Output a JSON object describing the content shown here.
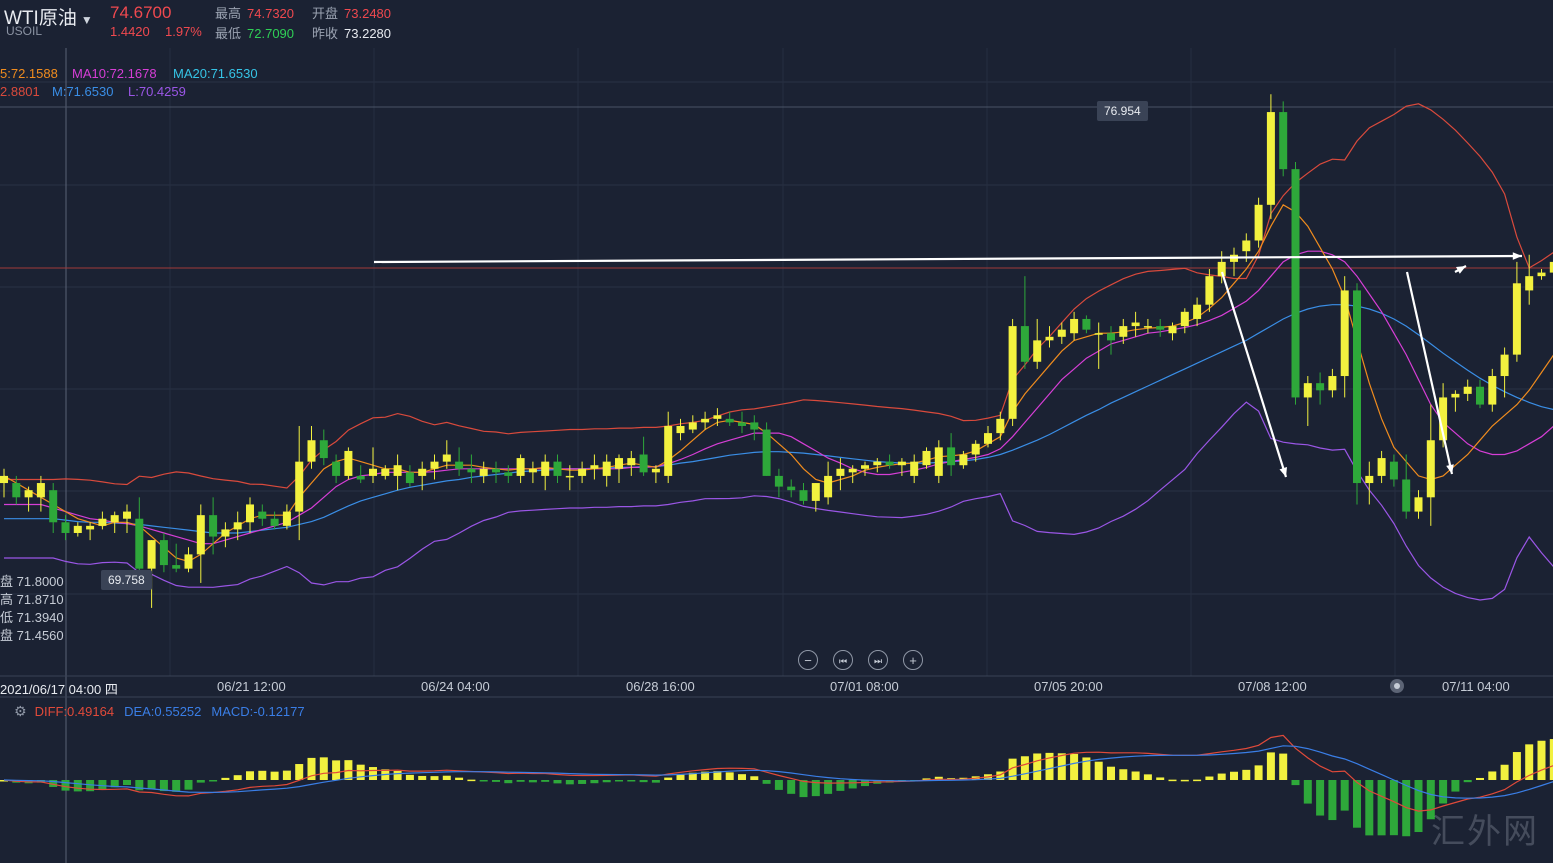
{
  "header": {
    "symbol": "WTI原油",
    "symbol_code": "USOIL",
    "price": "74.6700",
    "change": "1.4420",
    "change_pct": "1.97%",
    "high_label": "最高",
    "high": "74.7320",
    "open_label": "开盘",
    "open": "73.2480",
    "low_label": "最低",
    "low": "72.7090",
    "prev_close_label": "昨收",
    "prev_close": "73.2280"
  },
  "indicators": {
    "ma5": "5:72.1588",
    "ma10": "MA10:72.1678",
    "ma20": "MA20:71.6530",
    "boll_u": "2.8801",
    "boll_m": "M:71.6530",
    "boll_l": "L:70.4259"
  },
  "ohlc_table": [
    {
      "k": "盘",
      "v": "71.8000"
    },
    {
      "k": "高",
      "v": "71.8710"
    },
    {
      "k": "低",
      "v": "71.3940"
    },
    {
      "k": "盘",
      "v": "71.4560"
    }
  ],
  "annotations": {
    "max_label": "76.954",
    "min_label": "69.758"
  },
  "time_axis": {
    "cursor_label": "2021/06/17 04:00 四",
    "ticks": [
      "06/21 12:00",
      "06/24 04:00",
      "06/28 16:00",
      "07/01 08:00",
      "07/05 20:00",
      "07/08 12:00",
      "07/11 04:00"
    ]
  },
  "macd_header": {
    "diff": "DIFF:0.49164",
    "dea": "DEA:0.55252",
    "macd": "MACD:-0.12177"
  },
  "controls": {
    "zoom_out": "−",
    "prev": "⏮",
    "next": "⏭",
    "zoom_in": "+"
  },
  "watermark": "汇外网",
  "colors": {
    "background": "#1b2233",
    "up": "#f2f13f",
    "down": "#2ea83a",
    "ma5": "#f08c1e",
    "ma10": "#d63ed6",
    "ma20": "#3a8ee6",
    "boll_upper": "#d94a3c",
    "boll_lower": "#9a56e6",
    "diff": "#e04a3a",
    "dea": "#3a7ee6"
  },
  "chart_data": {
    "type": "candlestick",
    "y_range": [
      69.3,
      77.5
    ],
    "candles": [
      [
        71.5,
        71.7,
        71.3,
        71.6
      ],
      [
        71.5,
        71.6,
        71.2,
        71.3
      ],
      [
        71.3,
        71.45,
        71.1,
        71.4
      ],
      [
        71.3,
        71.6,
        71.1,
        71.5
      ],
      [
        71.4,
        71.5,
        70.8,
        70.95
      ],
      [
        70.95,
        71.05,
        70.7,
        70.8
      ],
      [
        70.8,
        70.95,
        70.75,
        70.9
      ],
      [
        70.85,
        70.95,
        70.7,
        70.9
      ],
      [
        70.9,
        71.1,
        70.85,
        71.0
      ],
      [
        70.95,
        71.1,
        70.8,
        71.05
      ],
      [
        71.0,
        71.2,
        70.8,
        71.1
      ],
      [
        71.0,
        71.3,
        70.0,
        70.3
      ],
      [
        70.3,
        70.7,
        69.75,
        70.7
      ],
      [
        70.7,
        70.8,
        70.25,
        70.35
      ],
      [
        70.35,
        70.65,
        70.25,
        70.3
      ],
      [
        70.3,
        70.6,
        70.25,
        70.5
      ],
      [
        70.5,
        71.2,
        70.1,
        71.05
      ],
      [
        71.05,
        71.3,
        70.5,
        70.75
      ],
      [
        70.75,
        70.95,
        70.6,
        70.85
      ],
      [
        70.85,
        71.1,
        70.7,
        70.95
      ],
      [
        70.95,
        71.3,
        70.8,
        71.2
      ],
      [
        71.1,
        71.2,
        70.9,
        71.0
      ],
      [
        71.0,
        71.1,
        70.85,
        70.9
      ],
      [
        70.9,
        71.2,
        70.85,
        71.1
      ],
      [
        71.1,
        72.3,
        70.7,
        71.8
      ],
      [
        71.8,
        72.3,
        71.7,
        72.1
      ],
      [
        72.1,
        72.25,
        71.75,
        71.85
      ],
      [
        71.8,
        71.9,
        71.5,
        71.6
      ],
      [
        71.6,
        72.0,
        71.55,
        71.95
      ],
      [
        71.6,
        71.75,
        71.5,
        71.55
      ],
      [
        71.6,
        72.0,
        71.5,
        71.7
      ],
      [
        71.6,
        71.75,
        71.55,
        71.7
      ],
      [
        71.6,
        71.9,
        71.4,
        71.75
      ],
      [
        71.65,
        71.75,
        71.45,
        71.5
      ],
      [
        71.6,
        71.8,
        71.4,
        71.7
      ],
      [
        71.7,
        71.9,
        71.55,
        71.8
      ],
      [
        71.8,
        72.1,
        71.7,
        71.9
      ],
      [
        71.8,
        72.0,
        71.6,
        71.7
      ],
      [
        71.7,
        71.9,
        71.5,
        71.65
      ],
      [
        71.6,
        71.8,
        71.5,
        71.7
      ],
      [
        71.7,
        71.8,
        71.5,
        71.65
      ],
      [
        71.65,
        71.75,
        71.5,
        71.6
      ],
      [
        71.6,
        71.9,
        71.5,
        71.85
      ],
      [
        71.65,
        71.8,
        71.5,
        71.7
      ],
      [
        71.6,
        71.9,
        71.4,
        71.8
      ],
      [
        71.8,
        71.9,
        71.5,
        71.6
      ],
      [
        71.6,
        71.75,
        71.4,
        71.6
      ],
      [
        71.6,
        71.8,
        71.5,
        71.7
      ],
      [
        71.7,
        71.9,
        71.55,
        71.75
      ],
      [
        71.6,
        71.9,
        71.45,
        71.8
      ],
      [
        71.7,
        71.9,
        71.5,
        71.85
      ],
      [
        71.75,
        71.95,
        71.6,
        71.85
      ],
      [
        71.9,
        72.15,
        71.6,
        71.65
      ],
      [
        71.65,
        71.75,
        71.5,
        71.7
      ],
      [
        71.6,
        72.5,
        71.5,
        72.3
      ],
      [
        72.2,
        72.4,
        72.1,
        72.3
      ],
      [
        72.25,
        72.45,
        72.2,
        72.35
      ],
      [
        72.35,
        72.5,
        72.25,
        72.4
      ],
      [
        72.4,
        72.55,
        72.3,
        72.45
      ],
      [
        72.4,
        72.5,
        72.3,
        72.35
      ],
      [
        72.35,
        72.5,
        72.2,
        72.3
      ],
      [
        72.35,
        72.45,
        72.1,
        72.25
      ],
      [
        72.25,
        72.35,
        71.6,
        71.6
      ],
      [
        71.6,
        71.7,
        71.3,
        71.45
      ],
      [
        71.45,
        71.55,
        71.3,
        71.4
      ],
      [
        71.4,
        71.5,
        71.2,
        71.25
      ],
      [
        71.25,
        71.5,
        71.1,
        71.5
      ],
      [
        71.3,
        71.8,
        71.2,
        71.6
      ],
      [
        71.6,
        71.85,
        71.4,
        71.7
      ],
      [
        71.65,
        71.75,
        71.5,
        71.7
      ],
      [
        71.7,
        71.8,
        71.6,
        71.75
      ],
      [
        71.75,
        71.85,
        71.65,
        71.8
      ],
      [
        71.8,
        71.9,
        71.7,
        71.75
      ],
      [
        71.75,
        71.85,
        71.6,
        71.8
      ],
      [
        71.6,
        71.9,
        71.5,
        71.8
      ],
      [
        71.75,
        72.0,
        71.7,
        71.95
      ],
      [
        71.6,
        72.1,
        71.5,
        72.0
      ],
      [
        72.0,
        72.2,
        71.6,
        71.75
      ],
      [
        71.75,
        71.95,
        71.7,
        71.9
      ],
      [
        71.9,
        72.1,
        71.8,
        72.05
      ],
      [
        72.05,
        72.3,
        72.0,
        72.2
      ],
      [
        72.2,
        72.5,
        72.1,
        72.4
      ],
      [
        72.4,
        73.8,
        72.3,
        73.7
      ],
      [
        73.7,
        74.4,
        73.1,
        73.2
      ],
      [
        73.2,
        73.8,
        73.1,
        73.5
      ],
      [
        73.5,
        73.7,
        73.4,
        73.55
      ],
      [
        73.55,
        73.75,
        73.45,
        73.65
      ],
      [
        73.6,
        73.9,
        73.5,
        73.8
      ],
      [
        73.8,
        73.85,
        73.6,
        73.65
      ],
      [
        73.6,
        73.75,
        73.1,
        73.6
      ],
      [
        73.6,
        73.7,
        73.3,
        73.5
      ],
      [
        73.55,
        73.8,
        73.45,
        73.7
      ],
      [
        73.7,
        73.9,
        73.55,
        73.75
      ],
      [
        73.7,
        73.8,
        73.6,
        73.7
      ],
      [
        73.7,
        73.8,
        73.55,
        73.65
      ],
      [
        73.6,
        73.75,
        73.5,
        73.7
      ],
      [
        73.7,
        73.95,
        73.6,
        73.9
      ],
      [
        73.8,
        74.1,
        73.7,
        74.0
      ],
      [
        74.0,
        74.5,
        73.9,
        74.4
      ],
      [
        74.4,
        74.75,
        74.3,
        74.6
      ],
      [
        74.6,
        74.8,
        74.4,
        74.7
      ],
      [
        74.75,
        75.0,
        74.6,
        74.9
      ],
      [
        74.9,
        75.5,
        74.8,
        75.4
      ],
      [
        75.4,
        76.95,
        75.2,
        76.7
      ],
      [
        76.7,
        76.85,
        75.8,
        75.9
      ],
      [
        75.9,
        76.0,
        72.6,
        72.7
      ],
      [
        72.7,
        73.0,
        72.3,
        72.9
      ],
      [
        72.9,
        73.05,
        72.6,
        72.8
      ],
      [
        72.8,
        73.1,
        72.7,
        73.0
      ],
      [
        73.0,
        74.4,
        72.7,
        74.2
      ],
      [
        74.2,
        74.3,
        71.2,
        71.5
      ],
      [
        71.5,
        71.8,
        71.2,
        71.6
      ],
      [
        71.6,
        71.95,
        71.5,
        71.85
      ],
      [
        71.8,
        71.9,
        71.45,
        71.55
      ],
      [
        71.55,
        71.9,
        71.0,
        71.1
      ],
      [
        71.1,
        71.4,
        71.0,
        71.3
      ],
      [
        71.3,
        72.6,
        70.9,
        72.1
      ],
      [
        72.1,
        72.9,
        72.0,
        72.7
      ],
      [
        72.7,
        72.8,
        72.5,
        72.75
      ],
      [
        72.75,
        72.95,
        72.65,
        72.85
      ],
      [
        72.85,
        72.95,
        72.55,
        72.6
      ],
      [
        72.6,
        73.1,
        72.5,
        73.0
      ],
      [
        73.0,
        73.4,
        72.7,
        73.3
      ],
      [
        73.3,
        74.6,
        73.2,
        74.3
      ],
      [
        74.2,
        74.7,
        74.0,
        74.4
      ],
      [
        74.4,
        74.5,
        74.35,
        74.45
      ],
      [
        74.45,
        74.7,
        74.4,
        74.6
      ]
    ],
    "ma5": [
      71.6,
      71.5,
      71.4,
      71.3,
      71.2,
      71.1,
      71.0,
      70.95,
      70.9,
      70.95,
      70.95,
      70.9,
      70.75,
      70.6,
      70.45,
      70.4,
      70.5,
      70.65,
      70.8,
      70.9,
      71.0,
      71.05,
      71.05,
      71.05,
      71.3,
      71.5,
      71.7,
      71.8,
      71.85,
      71.8,
      71.75,
      71.7,
      71.7,
      71.65,
      71.65,
      71.7,
      71.75,
      71.75,
      71.75,
      71.72,
      71.7,
      71.68,
      71.7,
      71.7,
      71.72,
      71.7,
      71.68,
      71.68,
      71.7,
      71.72,
      71.75,
      71.78,
      71.75,
      71.72,
      71.82,
      71.95,
      72.1,
      72.25,
      72.35,
      72.38,
      72.35,
      72.32,
      72.2,
      72.05,
      71.9,
      71.7,
      71.55,
      71.5,
      71.55,
      71.6,
      71.68,
      71.72,
      71.75,
      71.77,
      71.78,
      71.82,
      71.87,
      71.88,
      71.9,
      71.95,
      72.05,
      72.15,
      72.5,
      72.75,
      72.95,
      73.15,
      73.35,
      73.5,
      73.55,
      73.6,
      73.6,
      73.62,
      73.65,
      73.67,
      73.68,
      73.7,
      73.75,
      73.82,
      73.95,
      74.1,
      74.3,
      74.5,
      74.75,
      75.1,
      75.4,
      75.3,
      75.1,
      74.8,
      74.5,
      74.1,
      73.5,
      72.9,
      72.4,
      72.0,
      71.8,
      71.6,
      71.55,
      71.6,
      71.75,
      71.9,
      72.1,
      72.3,
      72.45,
      72.6,
      72.8,
      73.05,
      73.3,
      73.55,
      73.8
    ],
    "ma10": [
      71.2,
      71.2,
      71.2,
      71.2,
      71.15,
      71.1,
      71.05,
      71.0,
      70.98,
      70.95,
      70.93,
      70.9,
      70.85,
      70.8,
      70.75,
      70.7,
      70.65,
      70.65,
      70.7,
      70.75,
      70.8,
      70.85,
      70.9,
      70.95,
      71.05,
      71.15,
      71.3,
      71.45,
      71.55,
      71.6,
      71.62,
      71.65,
      71.65,
      71.65,
      71.65,
      71.66,
      71.68,
      71.7,
      71.7,
      71.7,
      71.7,
      71.7,
      71.7,
      71.7,
      71.7,
      71.7,
      71.7,
      71.7,
      71.7,
      71.7,
      71.7,
      71.72,
      71.72,
      71.73,
      71.77,
      71.83,
      71.9,
      71.98,
      72.05,
      72.1,
      72.15,
      72.2,
      72.2,
      72.2,
      72.15,
      72.05,
      71.95,
      71.85,
      71.78,
      71.7,
      71.65,
      71.62,
      71.62,
      71.65,
      71.68,
      71.72,
      71.77,
      71.8,
      71.83,
      71.86,
      71.9,
      71.98,
      72.15,
      72.35,
      72.55,
      72.75,
      72.95,
      73.1,
      73.25,
      73.35,
      73.45,
      73.5,
      73.55,
      73.6,
      73.62,
      73.65,
      73.68,
      73.72,
      73.78,
      73.85,
      73.95,
      74.05,
      74.2,
      74.4,
      74.6,
      74.7,
      74.75,
      74.75,
      74.7,
      74.6,
      74.4,
      74.15,
      73.9,
      73.6,
      73.3,
      72.95,
      72.6,
      72.35,
      72.2,
      72.05,
      71.95,
      71.9,
      71.9,
      71.95,
      72.05,
      72.15,
      72.3,
      72.45,
      72.6
    ],
    "ma20": [
      71.0,
      71.0,
      71.0,
      71.0,
      71.0,
      70.98,
      70.96,
      70.95,
      70.95,
      70.94,
      70.93,
      70.92,
      70.9,
      70.88,
      70.86,
      70.84,
      70.82,
      70.8,
      70.8,
      70.8,
      70.82,
      70.84,
      70.86,
      70.88,
      70.92,
      70.96,
      71.02,
      71.1,
      71.18,
      71.25,
      71.3,
      71.35,
      71.4,
      71.44,
      71.47,
      71.5,
      71.53,
      71.55,
      71.58,
      71.6,
      71.62,
      71.64,
      71.66,
      71.67,
      71.68,
      71.69,
      71.7,
      71.7,
      71.71,
      71.71,
      71.72,
      71.72,
      71.73,
      71.73,
      71.75,
      71.78,
      71.8,
      71.83,
      71.86,
      71.89,
      71.91,
      71.93,
      71.94,
      71.94,
      71.93,
      71.92,
      71.9,
      71.88,
      71.86,
      71.84,
      71.82,
      71.8,
      71.79,
      71.78,
      71.78,
      71.78,
      71.79,
      71.8,
      71.81,
      71.83,
      71.86,
      71.9,
      71.96,
      72.03,
      72.1,
      72.18,
      72.27,
      72.36,
      72.45,
      72.53,
      72.62,
      72.7,
      72.78,
      72.86,
      72.94,
      73.02,
      73.1,
      73.18,
      73.26,
      73.34,
      73.42,
      73.5,
      73.6,
      73.7,
      73.8,
      73.88,
      73.94,
      73.98,
      74.0,
      74.0,
      73.98,
      73.94,
      73.88,
      73.8,
      73.7,
      73.58,
      73.45,
      73.32,
      73.2,
      73.08,
      72.97,
      72.87,
      72.78,
      72.7,
      72.63,
      72.57,
      72.53,
      72.5,
      72.48
    ]
  }
}
